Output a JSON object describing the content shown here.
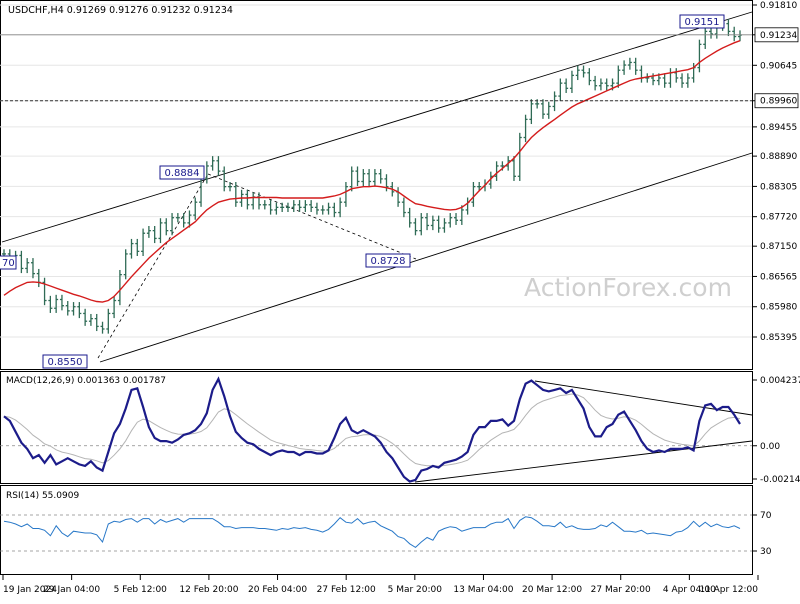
{
  "chart_data": {
    "type": "candlestick",
    "symbol": "USDCHF,H4",
    "price_header": "USDCHF,H4  0.91269 0.91276 0.91232 0.91234",
    "watermark": "ActionForex.com",
    "price_axis_ticks": [
      "0.91810",
      "0.91234",
      "0.90645",
      "0.89960",
      "0.89455",
      "0.88890",
      "0.88305",
      "0.87720",
      "0.87150",
      "0.86565",
      "0.85980",
      "0.85395"
    ],
    "price_axis_values": [
      0.9181,
      0.91234,
      0.90645,
      0.8996,
      0.89455,
      0.8889,
      0.88305,
      0.8772,
      0.8715,
      0.86565,
      0.8598,
      0.85395
    ],
    "x_ticks": [
      "19 Jan 2024",
      "29 Jan 04:00",
      "5 Feb 12:00",
      "12 Feb 20:00",
      "20 Feb 04:00",
      "27 Feb 12:00",
      "5 Mar 20:00",
      "13 Mar 04:00",
      "20 Mar 12:00",
      "27 Mar 20:00",
      "4 Apr 04:00",
      "11 Apr 12:00"
    ],
    "current_price": 0.91234,
    "support_level": 0.8996,
    "price_annotations": [
      {
        "text": "0.8550",
        "price": 0.855
      },
      {
        "text": "0.8884",
        "price": 0.8884
      },
      {
        "text": "0.8728",
        "price": 0.8728
      },
      {
        "text": "0.9151",
        "price": 0.9151
      },
      {
        "text": "70"
      }
    ],
    "closes": [
      0.87,
      0.8688,
      0.8697,
      0.8672,
      0.8683,
      0.8662,
      0.8645,
      0.861,
      0.8595,
      0.8612,
      0.86,
      0.859,
      0.8598,
      0.8585,
      0.857,
      0.8575,
      0.856,
      0.8555,
      0.8585,
      0.861,
      0.866,
      0.87,
      0.872,
      0.8705,
      0.874,
      0.8745,
      0.873,
      0.876,
      0.8745,
      0.877,
      0.877,
      0.876,
      0.8775,
      0.88,
      0.8845,
      0.887,
      0.888,
      0.886,
      0.883,
      0.883,
      0.88,
      0.8815,
      0.8795,
      0.881,
      0.8795,
      0.8795,
      0.8785,
      0.879,
      0.879,
      0.879,
      0.8795,
      0.879,
      0.8795,
      0.879,
      0.8785,
      0.8785,
      0.879,
      0.878,
      0.88,
      0.883,
      0.886,
      0.884,
      0.8855,
      0.884,
      0.8855,
      0.8845,
      0.883,
      0.882,
      0.88,
      0.878,
      0.876,
      0.8745,
      0.877,
      0.8755,
      0.8765,
      0.875,
      0.876,
      0.877,
      0.8765,
      0.8785,
      0.88,
      0.883,
      0.883,
      0.8835,
      0.885,
      0.887,
      0.887,
      0.888,
      0.885,
      0.8925,
      0.896,
      0.899,
      0.899,
      0.897,
      0.8985,
      0.9005,
      0.903,
      0.902,
      0.9045,
      0.9055,
      0.905,
      0.9035,
      0.9025,
      0.903,
      0.9025,
      0.903,
      0.9055,
      0.9065,
      0.907,
      0.9055,
      0.904,
      0.904,
      0.9035,
      0.904,
      0.903,
      0.905,
      0.904,
      0.903,
      0.904,
      0.906,
      0.9105,
      0.913,
      0.9125,
      0.914,
      0.9145,
      0.913,
      0.912,
      0.9123
    ],
    "ma_values": [
      0.862,
      0.8628,
      0.8635,
      0.864,
      0.8645,
      0.8646,
      0.8645,
      0.8642,
      0.8638,
      0.8634,
      0.863,
      0.8626,
      0.8622,
      0.8619,
      0.8615,
      0.8611,
      0.8608,
      0.8607,
      0.861,
      0.8618,
      0.863,
      0.8643,
      0.8656,
      0.8668,
      0.868,
      0.8692,
      0.8702,
      0.8712,
      0.8722,
      0.873,
      0.8738,
      0.8746,
      0.8754,
      0.8762,
      0.8774,
      0.8785,
      0.8793,
      0.88,
      0.8803,
      0.8806,
      0.8807,
      0.8808,
      0.8808,
      0.8809,
      0.8809,
      0.8809,
      0.8809,
      0.8809,
      0.8808,
      0.8808,
      0.8808,
      0.8808,
      0.8808,
      0.8808,
      0.8808,
      0.8808,
      0.881,
      0.8812,
      0.8815,
      0.882,
      0.8826,
      0.8828,
      0.883,
      0.883,
      0.8831,
      0.883,
      0.8828,
      0.8825,
      0.882,
      0.8812,
      0.8804,
      0.8797,
      0.8795,
      0.8792,
      0.879,
      0.8788,
      0.8786,
      0.8785,
      0.8786,
      0.879,
      0.8798,
      0.881,
      0.8822,
      0.8833,
      0.8845,
      0.8856,
      0.8865,
      0.8875,
      0.8885,
      0.8898,
      0.8912,
      0.8925,
      0.8935,
      0.8944,
      0.8952,
      0.896,
      0.8968,
      0.8976,
      0.8984,
      0.899,
      0.8995,
      0.9,
      0.9005,
      0.901,
      0.9015,
      0.902,
      0.9025,
      0.903,
      0.9035,
      0.9038,
      0.904,
      0.9042,
      0.9044,
      0.9046,
      0.9048,
      0.905,
      0.9052,
      0.9054,
      0.9056,
      0.906,
      0.907,
      0.9078,
      0.9085,
      0.9092,
      0.9098,
      0.9103,
      0.9108,
      0.9112
    ],
    "macd": {
      "label": "MACD(12,26,9) 0.001363 0.001787",
      "axis_ticks": [
        "0.004237",
        "0.00",
        "-0.002142"
      ],
      "axis_values": [
        0.004237,
        0.0,
        -0.002142
      ],
      "macd_line": [
        0.0019,
        0.0016,
        0.0009,
        0.0002,
        -0.0002,
        -0.0008,
        -0.0006,
        -0.0011,
        -0.0006,
        -0.0012,
        -0.001,
        -0.0008,
        -0.001,
        -0.0012,
        -0.0013,
        -0.001,
        -0.0014,
        -0.0016,
        -0.0004,
        0.0008,
        0.0014,
        0.0024,
        0.0036,
        0.0037,
        0.0025,
        0.0012,
        0.0005,
        0.0003,
        0.0003,
        0.0002,
        0.0004,
        0.0007,
        0.0008,
        0.001,
        0.0014,
        0.0021,
        0.0036,
        0.0043,
        0.0032,
        0.0019,
        0.0009,
        0.0005,
        0.0002,
        0.0001,
        -0.0002,
        -0.0004,
        -0.0006,
        -0.0004,
        -0.0003,
        -0.0004,
        -0.0004,
        -0.0006,
        -0.0004,
        -0.0004,
        -0.0005,
        -0.0005,
        -0.0003,
        0.0005,
        0.0014,
        0.0018,
        0.001,
        0.0008,
        0.001,
        0.0008,
        0.0006,
        0.0002,
        -0.0004,
        -0.0008,
        -0.0014,
        -0.002,
        -0.0023,
        -0.0022,
        -0.0016,
        -0.0015,
        -0.0013,
        -0.0014,
        -0.0011,
        -0.001,
        -0.0009,
        -0.0007,
        -0.0004,
        0.0007,
        0.0012,
        0.0012,
        0.0016,
        0.0016,
        0.0017,
        0.0013,
        0.0016,
        0.003,
        0.004,
        0.0042,
        0.0039,
        0.0036,
        0.0035,
        0.0036,
        0.0037,
        0.0034,
        0.0036,
        0.003,
        0.0024,
        0.0012,
        0.0006,
        0.0006,
        0.0012,
        0.0014,
        0.002,
        0.0022,
        0.0016,
        0.001,
        0.0003,
        -0.0002,
        -0.0004,
        -0.0003,
        -0.0004,
        -0.0002,
        -0.0002,
        -0.0002,
        -0.0001,
        -0.0003,
        0.0016,
        0.0026,
        0.0027,
        0.0023,
        0.0025,
        0.0025,
        0.002,
        0.0014
      ]
    },
    "rsi": {
      "label": "RSI(14) 55.0909",
      "axis_ticks": [
        "70",
        "30"
      ],
      "axis_values": [
        70,
        30
      ],
      "values": [
        63,
        62,
        60,
        57,
        60,
        55,
        55,
        53,
        47,
        58,
        50,
        46,
        52,
        51,
        50,
        50,
        48,
        40,
        60,
        63,
        62,
        65,
        66,
        62,
        66,
        66,
        60,
        65,
        62,
        64,
        66,
        62,
        66,
        66,
        66,
        66,
        66,
        62,
        57,
        57,
        55,
        56,
        56,
        56,
        55,
        55,
        54,
        53,
        55,
        54,
        56,
        55,
        56,
        54,
        53,
        51,
        54,
        60,
        67,
        62,
        61,
        66,
        60,
        62,
        63,
        58,
        55,
        52,
        46,
        44,
        38,
        34,
        40,
        45,
        42,
        52,
        55,
        57,
        56,
        52,
        54,
        56,
        56,
        56,
        60,
        62,
        62,
        66,
        55,
        64,
        68,
        67,
        63,
        58,
        58,
        57,
        62,
        56,
        58,
        55,
        54,
        54,
        55,
        59,
        57,
        62,
        57,
        52,
        52,
        51,
        53,
        49,
        50,
        49,
        48,
        47,
        51,
        52,
        56,
        63,
        57,
        62,
        57,
        60,
        57,
        56,
        58,
        55
      ]
    }
  }
}
